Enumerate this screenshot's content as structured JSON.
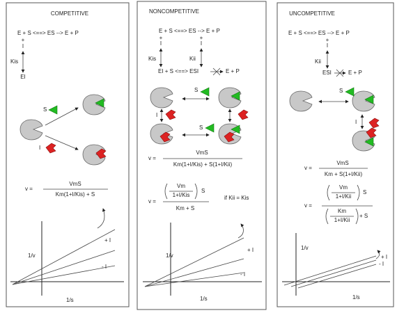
{
  "panels": [
    {
      "title": "COMPETITIVE",
      "scheme": "E + S <==> ES --> E + P",
      "plus": "+",
      "inhibitor": "I",
      "constant": "Kis",
      "complex": "EI",
      "substrate_label": "S",
      "inhibitor_label": "I",
      "equation": {
        "lhs": "v =",
        "numerator": "VmS",
        "denominator": "Km(1+I/Kis) + S"
      },
      "plot": {
        "y_label": "1/v",
        "x_label": "1/s",
        "plus_label": "+ I",
        "minus_label": "- I"
      }
    },
    {
      "title": "NONCOMPETITIVE",
      "scheme": "E + S <==> ES --> E + P",
      "plus_left": "+",
      "inhibitor_left": "I",
      "constant_left": "Kis",
      "plus_right": "+",
      "inhibitor_right": "I",
      "constant_right": "Kii",
      "scheme_bottom": "EI + S <==> ESI",
      "scheme_bottom_product": "E + P",
      "substrate_labels": [
        "S",
        "S"
      ],
      "inhibitor_label": "I",
      "equation": {
        "lhs": "v =",
        "numerator": "VmS",
        "denominator": "Km(1+I/Kis) + S(1+I/Kii)"
      },
      "equation_simplified": {
        "lhs": "v =",
        "inner_numerator": "Vm",
        "inner_denominator": "1+I/Kis",
        "factor": "S",
        "denominator": "Km + S",
        "condition": "if Kii = Kis"
      },
      "plot": {
        "y_label": "1/v",
        "x_label": "1/s",
        "plus_label": "+ I",
        "minus_label": "- I"
      }
    },
    {
      "title": "UNCOMPETITIVE",
      "scheme": "E + S <==> ES --> E + P",
      "plus": "+",
      "inhibitor": "I",
      "constant": "Kii",
      "scheme_bottom": "ESI",
      "scheme_bottom_product": "E + P",
      "substrate_label": "S",
      "inhibitor_label": "I",
      "equation": {
        "lhs": "v =",
        "numerator": "VmS",
        "denominator": "Km + S(1+I/Kii)"
      },
      "equation_simplified": {
        "lhs": "v =",
        "inner_numerator": "Vm",
        "inner_denominator": "1+I/Kii",
        "factor": "S",
        "denominator_numerator": "Km",
        "denominator_denominator": "1+I/Kii",
        "denominator_term": "+ S"
      },
      "plot": {
        "y_label": "1/v",
        "x_label": "1/s",
        "plus_label": "+ I",
        "minus_label": "- I"
      }
    }
  ]
}
